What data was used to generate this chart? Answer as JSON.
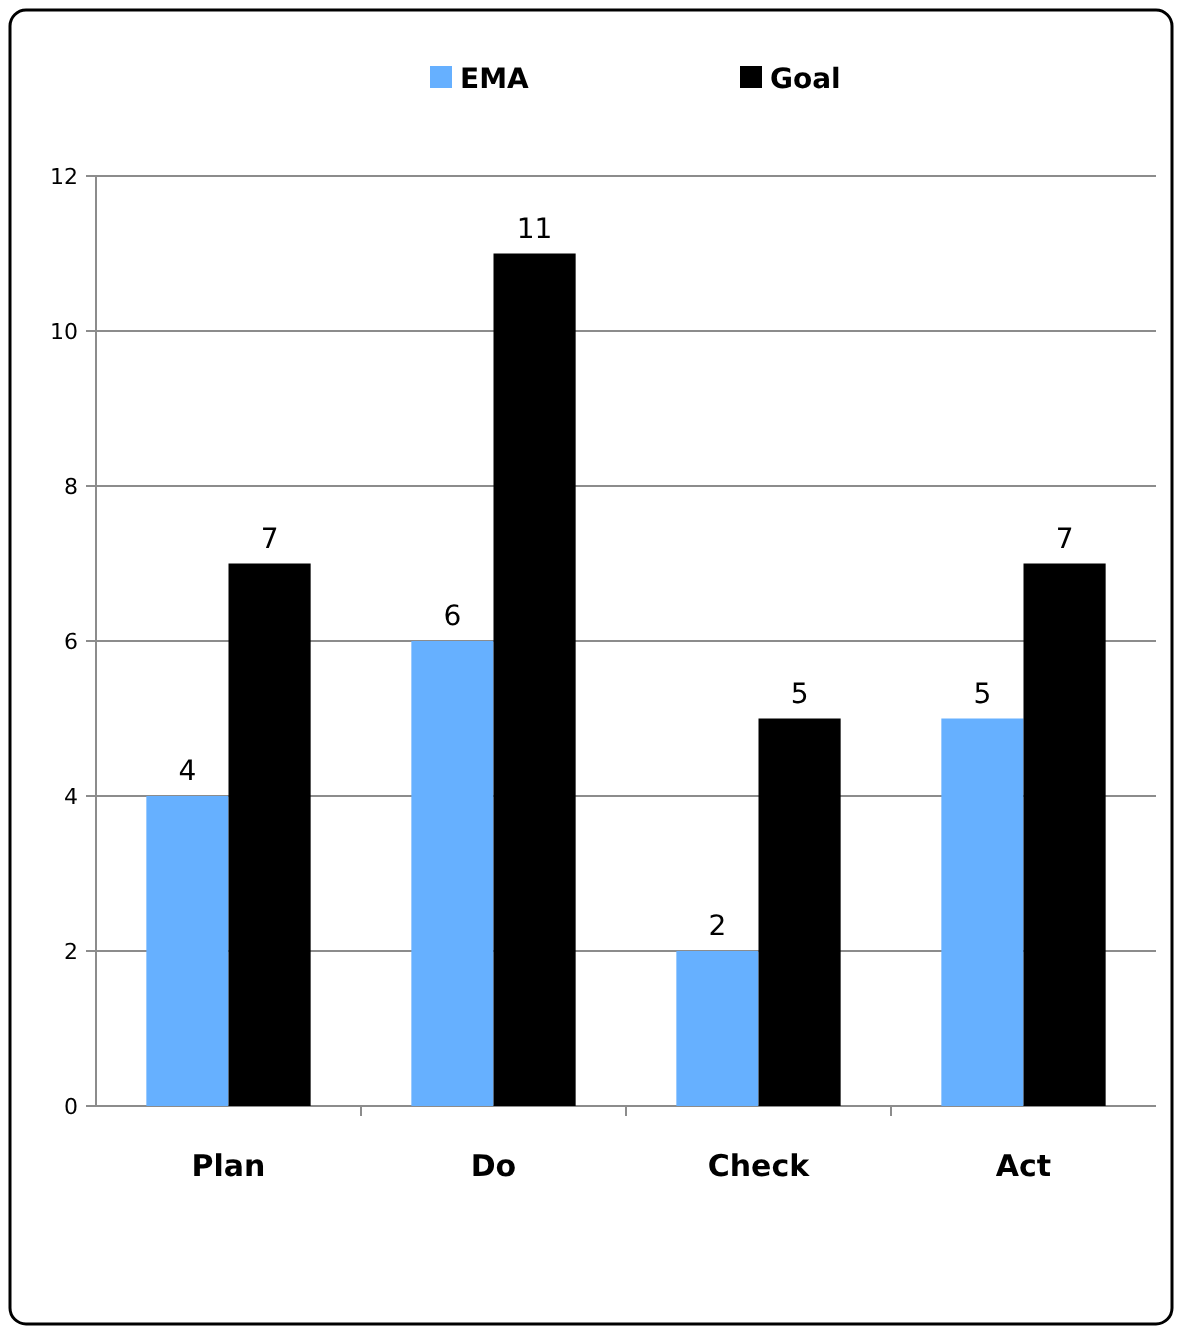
{
  "chart_data": {
    "type": "bar",
    "categories": [
      "Plan",
      "Do",
      "Check",
      "Act"
    ],
    "series": [
      {
        "name": "EMA",
        "color": "#66b0ff",
        "values": [
          4,
          6,
          2,
          5
        ]
      },
      {
        "name": "Goal",
        "color": "#000000",
        "values": [
          7,
          11,
          5,
          7
        ]
      }
    ],
    "ylim": [
      0,
      12
    ],
    "yticks": [
      0,
      2,
      4,
      6,
      8,
      10,
      12
    ],
    "grid": "y",
    "legend": "top",
    "data_labels": true
  }
}
